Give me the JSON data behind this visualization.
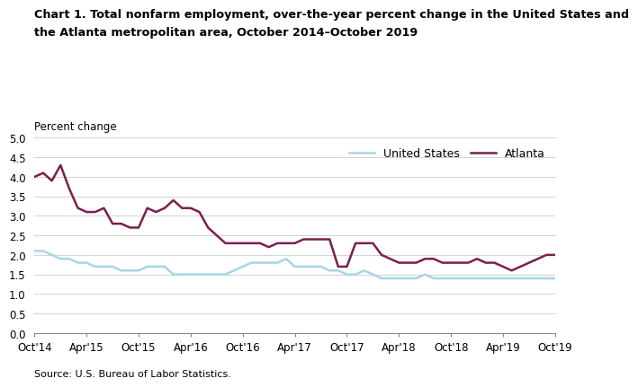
{
  "title_line1": "Chart 1. Total nonfarm employment, over-the-year percent change in the United States and",
  "title_line2": "the Atlanta metropolitan area, October 2014–October 2019",
  "ylabel": "Percent change",
  "source": "Source: U.S. Bureau of Labor Statistics.",
  "ylim": [
    0.0,
    5.0
  ],
  "yticks": [
    0.0,
    0.5,
    1.0,
    1.5,
    2.0,
    2.5,
    3.0,
    3.5,
    4.0,
    4.5,
    5.0
  ],
  "us_color": "#a8d4e8",
  "atl_color": "#7b1f4e",
  "us_label": "United States",
  "atl_label": "Atlanta",
  "xtick_labels": [
    "Oct'14",
    "Apr'15",
    "Oct'15",
    "Apr'16",
    "Oct'16",
    "Apr'17",
    "Oct'17",
    "Apr'18",
    "Oct'18",
    "Apr'19",
    "Oct'19"
  ],
  "us_data": [
    2.1,
    2.1,
    2.0,
    1.9,
    1.9,
    1.8,
    1.8,
    1.7,
    1.7,
    1.7,
    1.6,
    1.6,
    1.6,
    1.7,
    1.7,
    1.7,
    1.5,
    1.5,
    1.5,
    1.5,
    1.5,
    1.5,
    1.5,
    1.6,
    1.7,
    1.8,
    1.8,
    1.8,
    1.8,
    1.9,
    1.7,
    1.7,
    1.7,
    1.7,
    1.6,
    1.6,
    1.5,
    1.5,
    1.6,
    1.5,
    1.4,
    1.4,
    1.4,
    1.4,
    1.4,
    1.5,
    1.4,
    1.4,
    1.4,
    1.4,
    1.4,
    1.4,
    1.4,
    1.4,
    1.4,
    1.4,
    1.4,
    1.4,
    1.4,
    1.4,
    1.4
  ],
  "atl_data": [
    4.0,
    4.1,
    3.9,
    4.3,
    3.7,
    3.2,
    3.1,
    3.1,
    3.2,
    2.8,
    2.8,
    2.7,
    2.7,
    3.2,
    3.1,
    3.2,
    3.4,
    3.2,
    3.2,
    3.1,
    2.7,
    2.5,
    2.3,
    2.3,
    2.3,
    2.3,
    2.3,
    2.2,
    2.3,
    2.3,
    2.3,
    2.4,
    2.4,
    2.4,
    2.4,
    1.7,
    1.7,
    2.3,
    2.3,
    2.3,
    2.0,
    1.9,
    1.8,
    1.8,
    1.8,
    1.9,
    1.9,
    1.8,
    1.8,
    1.8,
    1.8,
    1.9,
    1.8,
    1.8,
    1.7,
    1.6,
    1.7,
    1.8,
    1.9,
    2.0,
    2.0
  ]
}
